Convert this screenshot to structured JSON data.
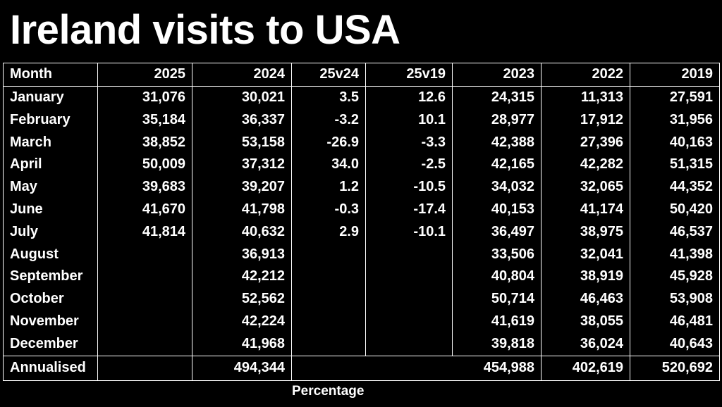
{
  "title": "Ireland visits to USA",
  "headers": [
    "Month",
    "2025",
    "2024",
    "25v24",
    "25v19",
    "2023",
    "2022",
    "2019"
  ],
  "rows": [
    [
      "January",
      "31,076",
      "30,021",
      "3.5",
      "12.6",
      "24,315",
      "11,313",
      "27,591"
    ],
    [
      "February",
      "35,184",
      "36,337",
      "-3.2",
      "10.1",
      "28,977",
      "17,912",
      "31,956"
    ],
    [
      "March",
      "38,852",
      "53,158",
      "-26.9",
      "-3.3",
      "42,388",
      "27,396",
      "40,163"
    ],
    [
      "April",
      "50,009",
      "37,312",
      "34.0",
      "-2.5",
      "42,165",
      "42,282",
      "51,315"
    ],
    [
      "May",
      "39,683",
      "39,207",
      "1.2",
      "-10.5",
      "34,032",
      "32,065",
      "44,352"
    ],
    [
      "June",
      "41,670",
      "41,798",
      "-0.3",
      "-17.4",
      "40,153",
      "41,174",
      "50,420"
    ],
    [
      "July",
      "41,814",
      "40,632",
      "2.9",
      "-10.1",
      "36,497",
      "38,975",
      "46,537"
    ],
    [
      "August",
      "",
      "36,913",
      "",
      "",
      "33,506",
      "32,041",
      "41,398"
    ],
    [
      "September",
      "",
      "42,212",
      "",
      "",
      "40,804",
      "38,919",
      "45,928"
    ],
    [
      "October",
      "",
      "52,562",
      "",
      "",
      "50,714",
      "46,463",
      "53,908"
    ],
    [
      "November",
      "",
      "42,224",
      "",
      "",
      "41,619",
      "38,055",
      "46,481"
    ],
    [
      "December",
      "",
      "41,968",
      "",
      "",
      "39,818",
      "36,024",
      "40,643"
    ]
  ],
  "total": {
    "label": "Annualised",
    "v2025": "",
    "v2024": "494,344",
    "v2023": "454,988",
    "v2022": "402,619",
    "v2019": "520,692"
  },
  "footnote": "Percentage"
}
